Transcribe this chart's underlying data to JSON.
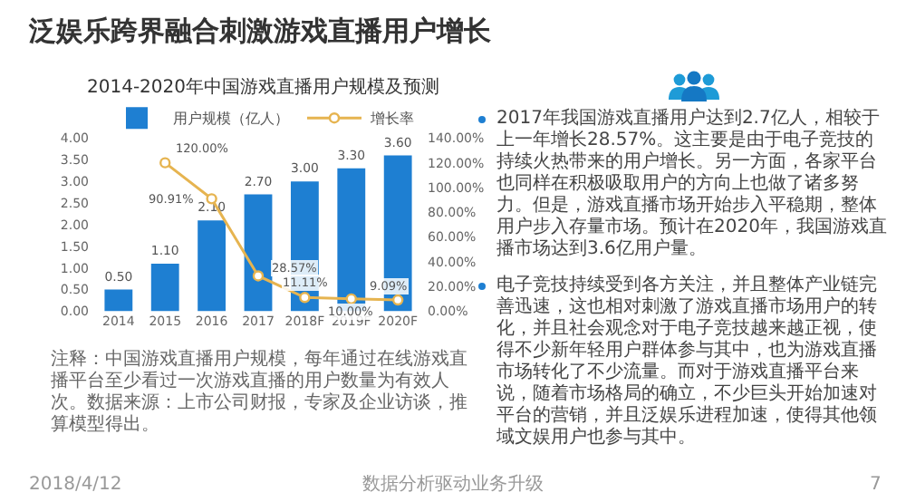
{
  "chart_data": {
    "type": "bar",
    "title": "泛娱乐跨界融合刺激游戏直播用户增长",
    "subtitle": "2014-2020年中国游戏直播用户规模及预测",
    "categories": [
      "2014",
      "2015",
      "2016",
      "2017",
      "2018F",
      "2019F",
      "2020F"
    ],
    "series": [
      {
        "name": "用户规模（亿人）",
        "color": "#1e7fd2",
        "values": [
          0.5,
          1.1,
          2.1,
          2.7,
          3.0,
          3.3,
          3.6
        ],
        "value_labels": [
          "0.50",
          "1.10",
          "2.10",
          "2.70",
          "3.00",
          "3.30",
          "3.60"
        ]
      },
      {
        "name": "增长率",
        "type": "line",
        "axis": "y2",
        "color": "#e6b450",
        "values": [
          null,
          120,
          90.91,
          28.57,
          11.11,
          10,
          9.09
        ],
        "value_labels": [
          null,
          "120.00%",
          "90.91%",
          "28.57%",
          "11.11%",
          "10.00%",
          "9.09%"
        ]
      }
    ],
    "ylim": [
      0,
      4
    ],
    "yticks": [
      {
        "value": 0,
        "label": "0.00"
      },
      {
        "value": 0.5,
        "label": "0.50"
      },
      {
        "value": 1,
        "label": "1.00"
      },
      {
        "value": 1.5,
        "label": "1.50"
      },
      {
        "value": 2,
        "label": "2.00"
      },
      {
        "value": 2.5,
        "label": "2.50"
      },
      {
        "value": 3,
        "label": "3.00"
      },
      {
        "value": 3.5,
        "label": "3.50"
      },
      {
        "value": 4,
        "label": "4.00"
      }
    ],
    "y2lim": [
      0,
      140
    ],
    "y2ticks": [
      {
        "value": 0,
        "label": "0.00%"
      },
      {
        "value": 20,
        "label": "20.00%"
      },
      {
        "value": 40,
        "label": "40.00%"
      },
      {
        "value": 60,
        "label": "60.00%"
      },
      {
        "value": 80,
        "label": "80.00%"
      },
      {
        "value": 100,
        "label": "100.00%"
      },
      {
        "value": 120,
        "label": "120.00%"
      },
      {
        "value": 140,
        "label": "140.00%"
      }
    ],
    "legend": "top",
    "grid": false,
    "marker": "circle",
    "annotations": [
      "2017年我国游戏直播用户达到2.7亿人，相较于上一年增长28.57%。这主要是由于电子竞技的持续火热带来的用户增长。另一方面，各家平台也同样在积极吸取用户的方向上也做了诸多努力。但是，游戏直播市场开始步入平稳期，整体用户步入存量市场。预计在2020年，我国游戏直播市场达到3.6亿用户量。",
      "电子竞技持续受到各方关注，并且整体产业链完善迅速，这也相对刺激了游戏直播市场用户的转化，并且社会观念对于电子竞技越来越正视，使得不少新年轻用户群体参与其中，也为游戏直播市场转化了不少流量。而对于游戏直播平台来说，随着市场格局的确立，不少巨头开始加速对平台的营销，并且泛娱乐进程加速，使得其他领域文娱用户也参与其中。",
      "注释：中国游戏直播用户规模，每年通过在线游戏直播平台至少看过一次游戏直播的用户数量为有效人次。数据来源：上市公司财报，专家及企业访谈，推算模型得出。",
      "2018/4/12",
      "数据分析驱动业务升级",
      "7"
    ]
  }
}
